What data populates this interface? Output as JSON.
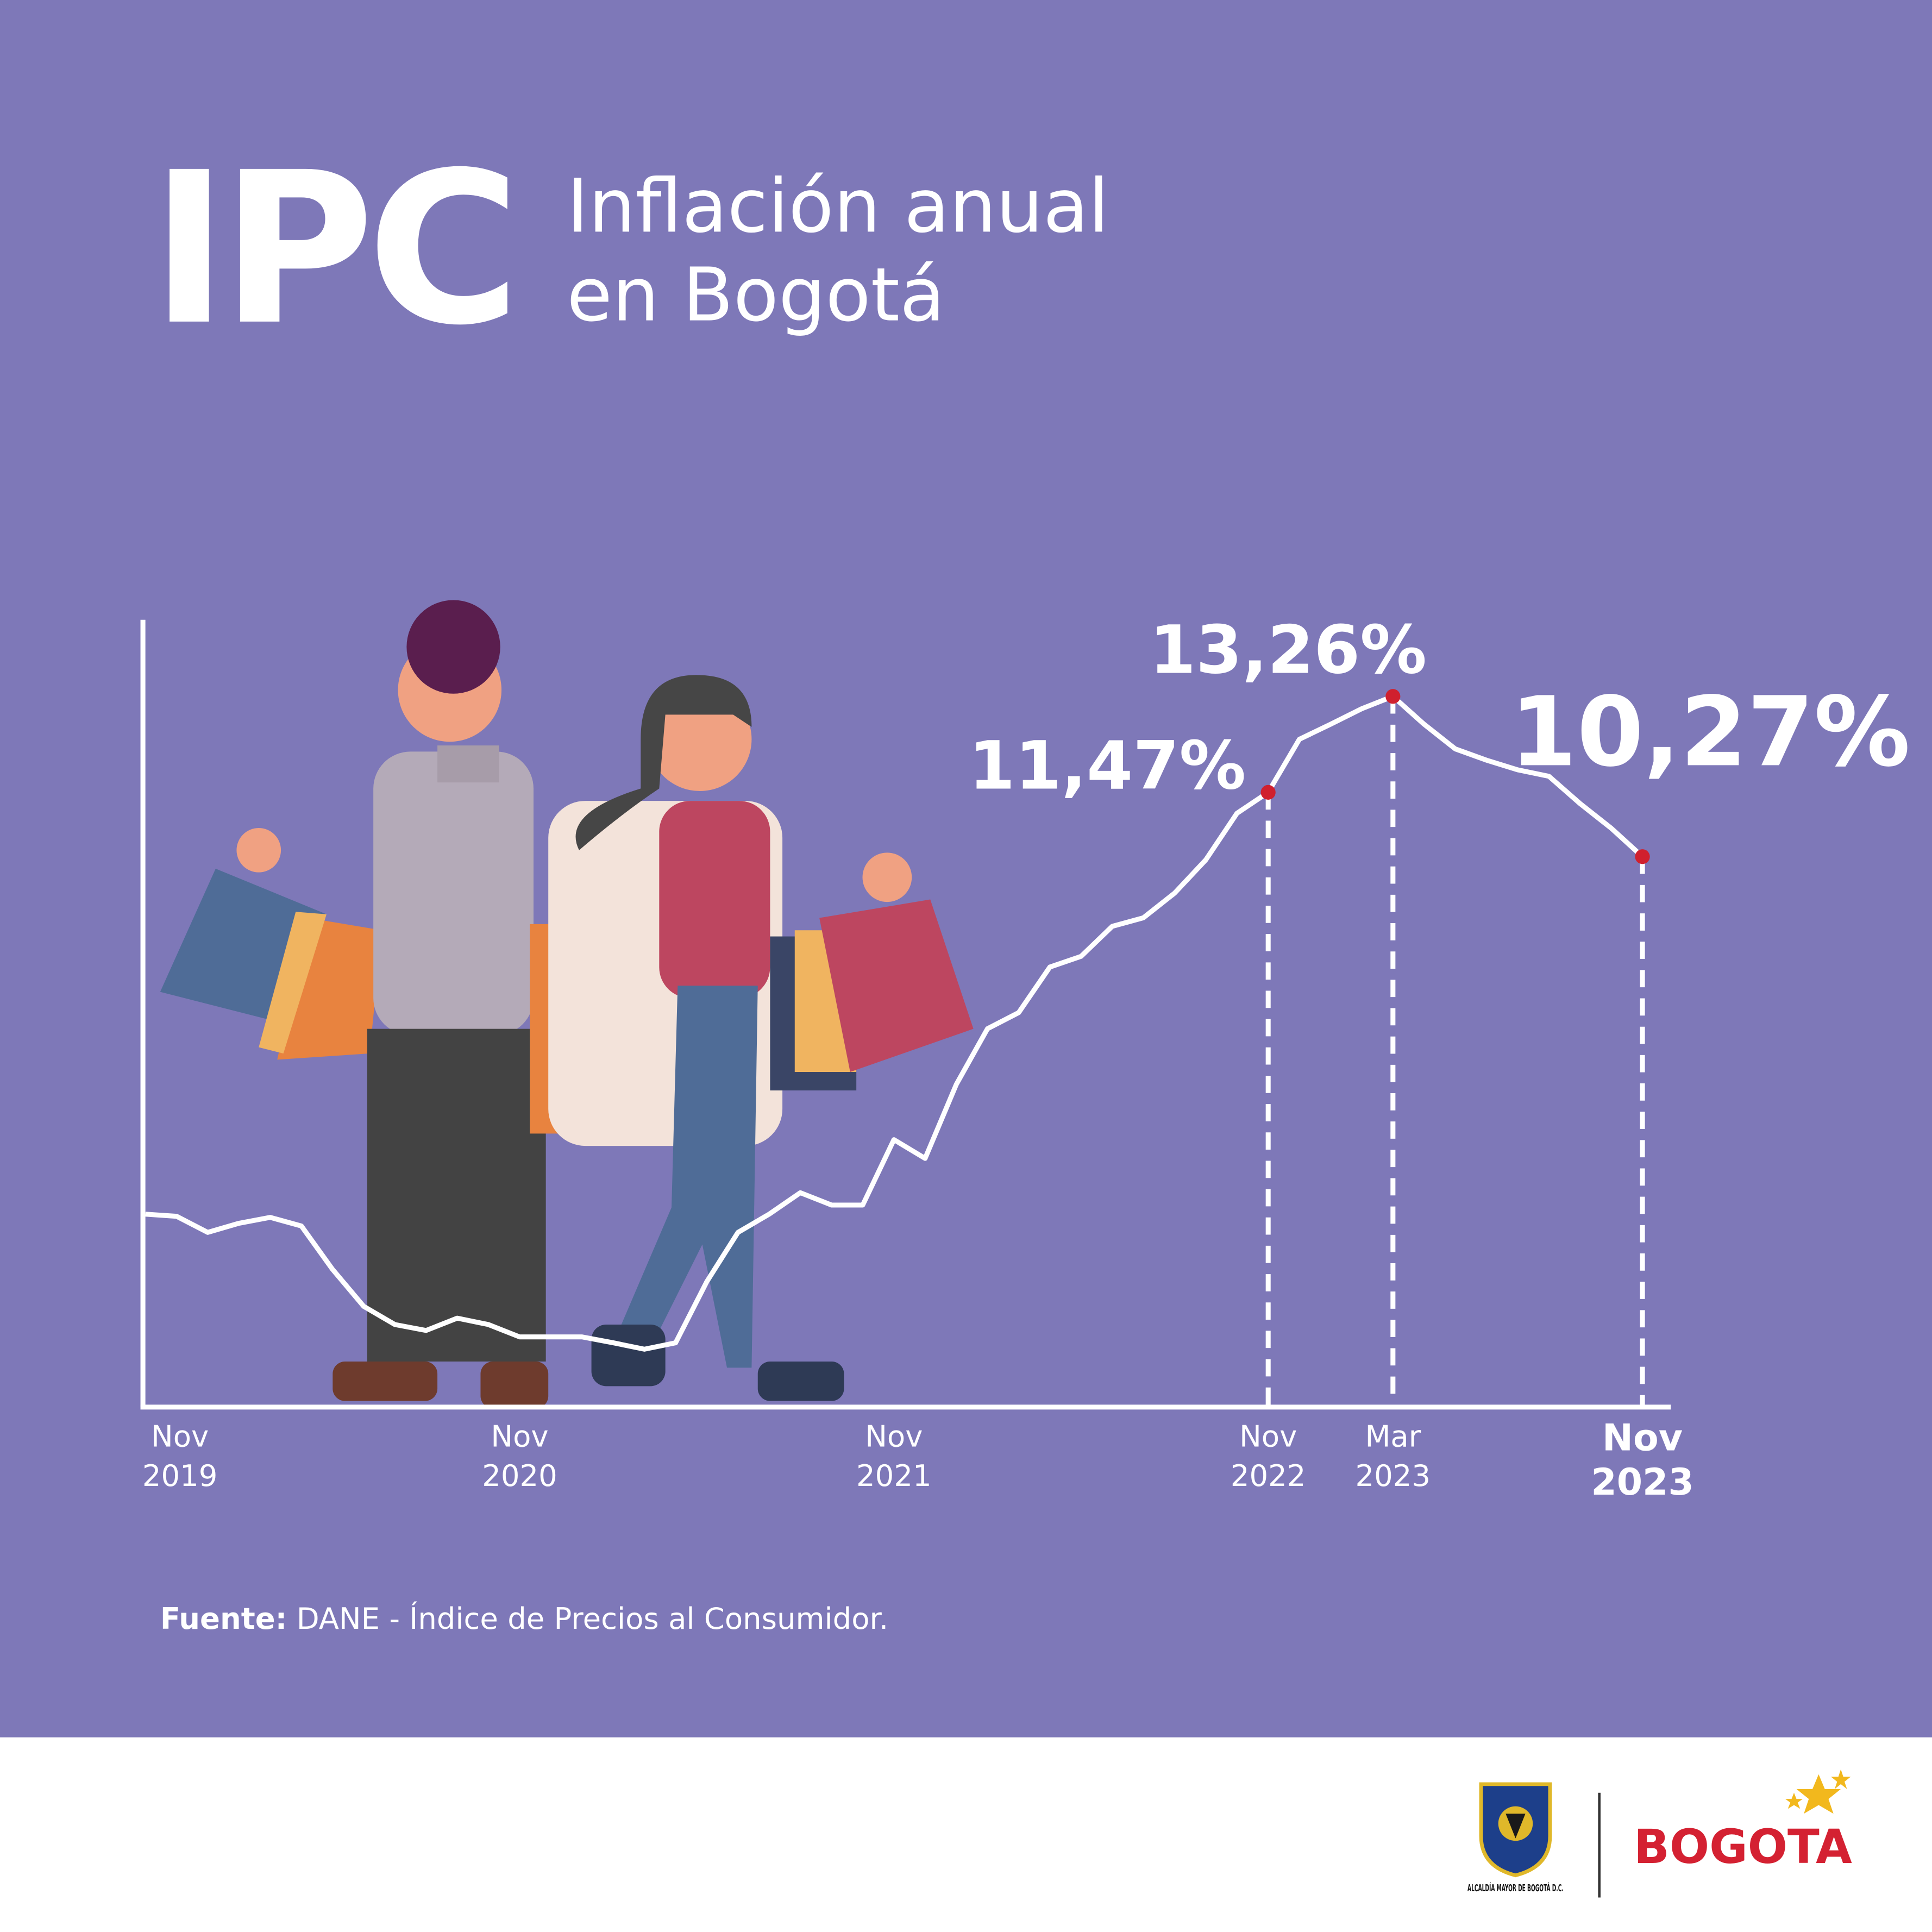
{
  "chart_data": {
    "type": "line",
    "title": "IPC",
    "subtitle": "Inflación anual en Bogotá",
    "source_label": "Fuente:",
    "source": "DANE - Índice de Precios al Consumidor.",
    "categories": [
      "Nov 2019",
      null,
      null,
      null,
      null,
      null,
      null,
      null,
      null,
      null,
      null,
      null,
      "Nov 2020",
      null,
      null,
      null,
      null,
      null,
      null,
      null,
      null,
      null,
      null,
      null,
      "Nov 2021",
      null,
      null,
      null,
      null,
      null,
      null,
      null,
      null,
      null,
      null,
      null,
      "Nov 2022",
      null,
      null,
      null,
      "Mar 2023",
      null,
      null,
      null,
      null,
      null,
      null,
      null,
      "Nov 2023"
    ],
    "series": [
      {
        "name": "Inflación anual",
        "color": "#ffffff",
        "values": [
          3.6,
          3.56,
          3.26,
          3.43,
          3.54,
          3.38,
          2.57,
          1.88,
          1.54,
          1.43,
          1.66,
          1.54,
          1.31,
          1.31,
          1.31,
          1.2,
          1.08,
          1.2,
          2.34,
          3.26,
          3.6,
          4.0,
          3.77,
          3.77,
          4.99,
          4.64,
          6.02,
          7.06,
          7.36,
          8.21,
          8.41,
          8.97,
          9.13,
          9.59,
          10.21,
          11.08,
          11.47,
          12.46,
          12.74,
          13.03,
          13.26,
          12.74,
          12.28,
          12.07,
          11.89,
          11.77,
          11.26,
          10.8,
          10.27
        ],
        "value_labels": [
          null,
          null,
          null,
          null,
          null,
          null,
          null,
          null,
          null,
          null,
          null,
          null,
          null,
          null,
          null,
          null,
          null,
          null,
          null,
          null,
          null,
          null,
          null,
          null,
          null,
          null,
          null,
          null,
          null,
          null,
          null,
          null,
          null,
          null,
          null,
          null,
          "11,47%",
          null,
          null,
          null,
          "13,26%",
          null,
          null,
          null,
          null,
          null,
          null,
          null,
          "10,27%"
        ]
      }
    ],
    "marker_color": "#d0202e",
    "ylim": [
      0,
      14
    ],
    "logo_left": "ALCALDÍA MAYOR DE BOGOTÁ D.C.",
    "logo_right": "BOGOTA"
  }
}
